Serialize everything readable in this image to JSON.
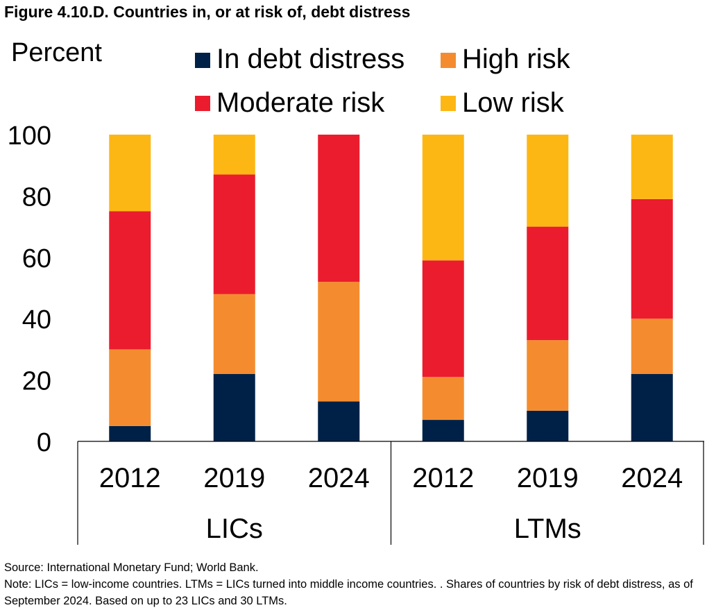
{
  "figure_title": "Figure 4.10.D. Countries in, or at risk of, debt distress",
  "source": "Source: International Monetary Fund; World Bank.",
  "note": "Note: LICs = low-income countries.  LTMs = LICs turned into middle income countries. . Shares of countries by risk of debt distress, as of September 2024. Based on up to 23 LICs and 30 LTMs.",
  "chart_data": {
    "type": "bar",
    "stacked": true,
    "ylabel": "Percent",
    "ylim": [
      0,
      100
    ],
    "yticks": [
      0,
      20,
      40,
      60,
      80,
      100
    ],
    "grid": false,
    "legend_position": "top",
    "categories": [
      "2012",
      "2019",
      "2024",
      "2012",
      "2019",
      "2024"
    ],
    "groups": [
      {
        "label": "LICs",
        "categories": [
          "2012",
          "2019",
          "2024"
        ]
      },
      {
        "label": "LTMs",
        "categories": [
          "2012",
          "2019",
          "2024"
        ]
      }
    ],
    "series": [
      {
        "name": "In debt distress",
        "color": "#002147",
        "values": [
          5,
          22,
          13,
          7,
          10,
          22
        ]
      },
      {
        "name": "High risk",
        "color": "#F48C2F",
        "values": [
          25,
          26,
          39,
          14,
          23,
          18
        ]
      },
      {
        "name": "Moderate risk",
        "color": "#EB1C2D",
        "values": [
          45,
          39,
          48,
          38,
          37,
          39
        ]
      },
      {
        "name": "Low risk",
        "color": "#FDB714",
        "values": [
          25,
          13,
          0,
          41,
          30,
          21
        ]
      }
    ]
  }
}
